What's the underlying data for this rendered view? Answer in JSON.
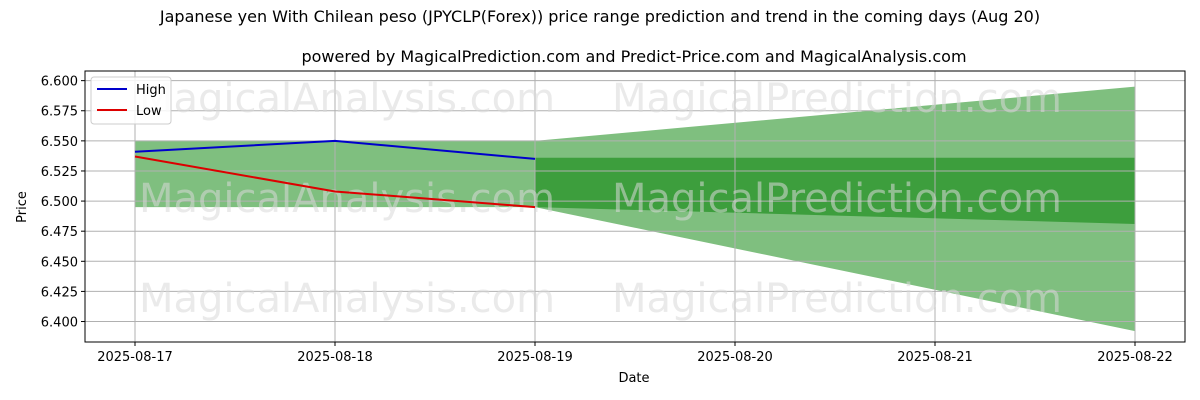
{
  "chart_data": {
    "type": "line",
    "title": "Japanese yen With Chilean peso (JPYCLP(Forex)) price range prediction and trend in the coming days (Aug 20)",
    "subtitle": "powered by MagicalPrediction.com and Predict-Price.com and MagicalAnalysis.com",
    "xlabel": "Date",
    "ylabel": "Price",
    "categories": [
      "2025-08-17",
      "2025-08-18",
      "2025-08-19",
      "2025-08-20",
      "2025-08-21",
      "2025-08-22"
    ],
    "ylim": [
      6.383,
      6.608
    ],
    "yticks": [
      "6.400",
      "6.425",
      "6.450",
      "6.475",
      "6.500",
      "6.525",
      "6.550",
      "6.575",
      "6.600"
    ],
    "grid": true,
    "legend_position": "top-left",
    "series": [
      {
        "name": "High",
        "color": "#0000cc",
        "x": [
          0,
          1,
          2
        ],
        "values": [
          6.541,
          6.55,
          6.535
        ]
      },
      {
        "name": "Low",
        "color": "#dd0000",
        "x": [
          0,
          1,
          2
        ],
        "values": [
          6.537,
          6.508,
          6.495
        ]
      }
    ],
    "bands": [
      {
        "color": "#7fbf7f",
        "x": [
          0,
          2
        ],
        "upper": [
          6.55,
          6.55
        ],
        "lower": [
          6.495,
          6.495
        ]
      },
      {
        "color": "#7fbf7f",
        "x": [
          2,
          5
        ],
        "upper": [
          6.55,
          6.595
        ],
        "lower": [
          6.495,
          6.392
        ]
      },
      {
        "color": "#3d9e3d",
        "x": [
          2,
          5
        ],
        "upper": [
          6.536,
          6.536
        ],
        "lower": [
          6.495,
          6.481
        ]
      }
    ],
    "watermarks": [
      "MagicalAnalysis.com",
      "MagicalPrediction.com"
    ]
  }
}
